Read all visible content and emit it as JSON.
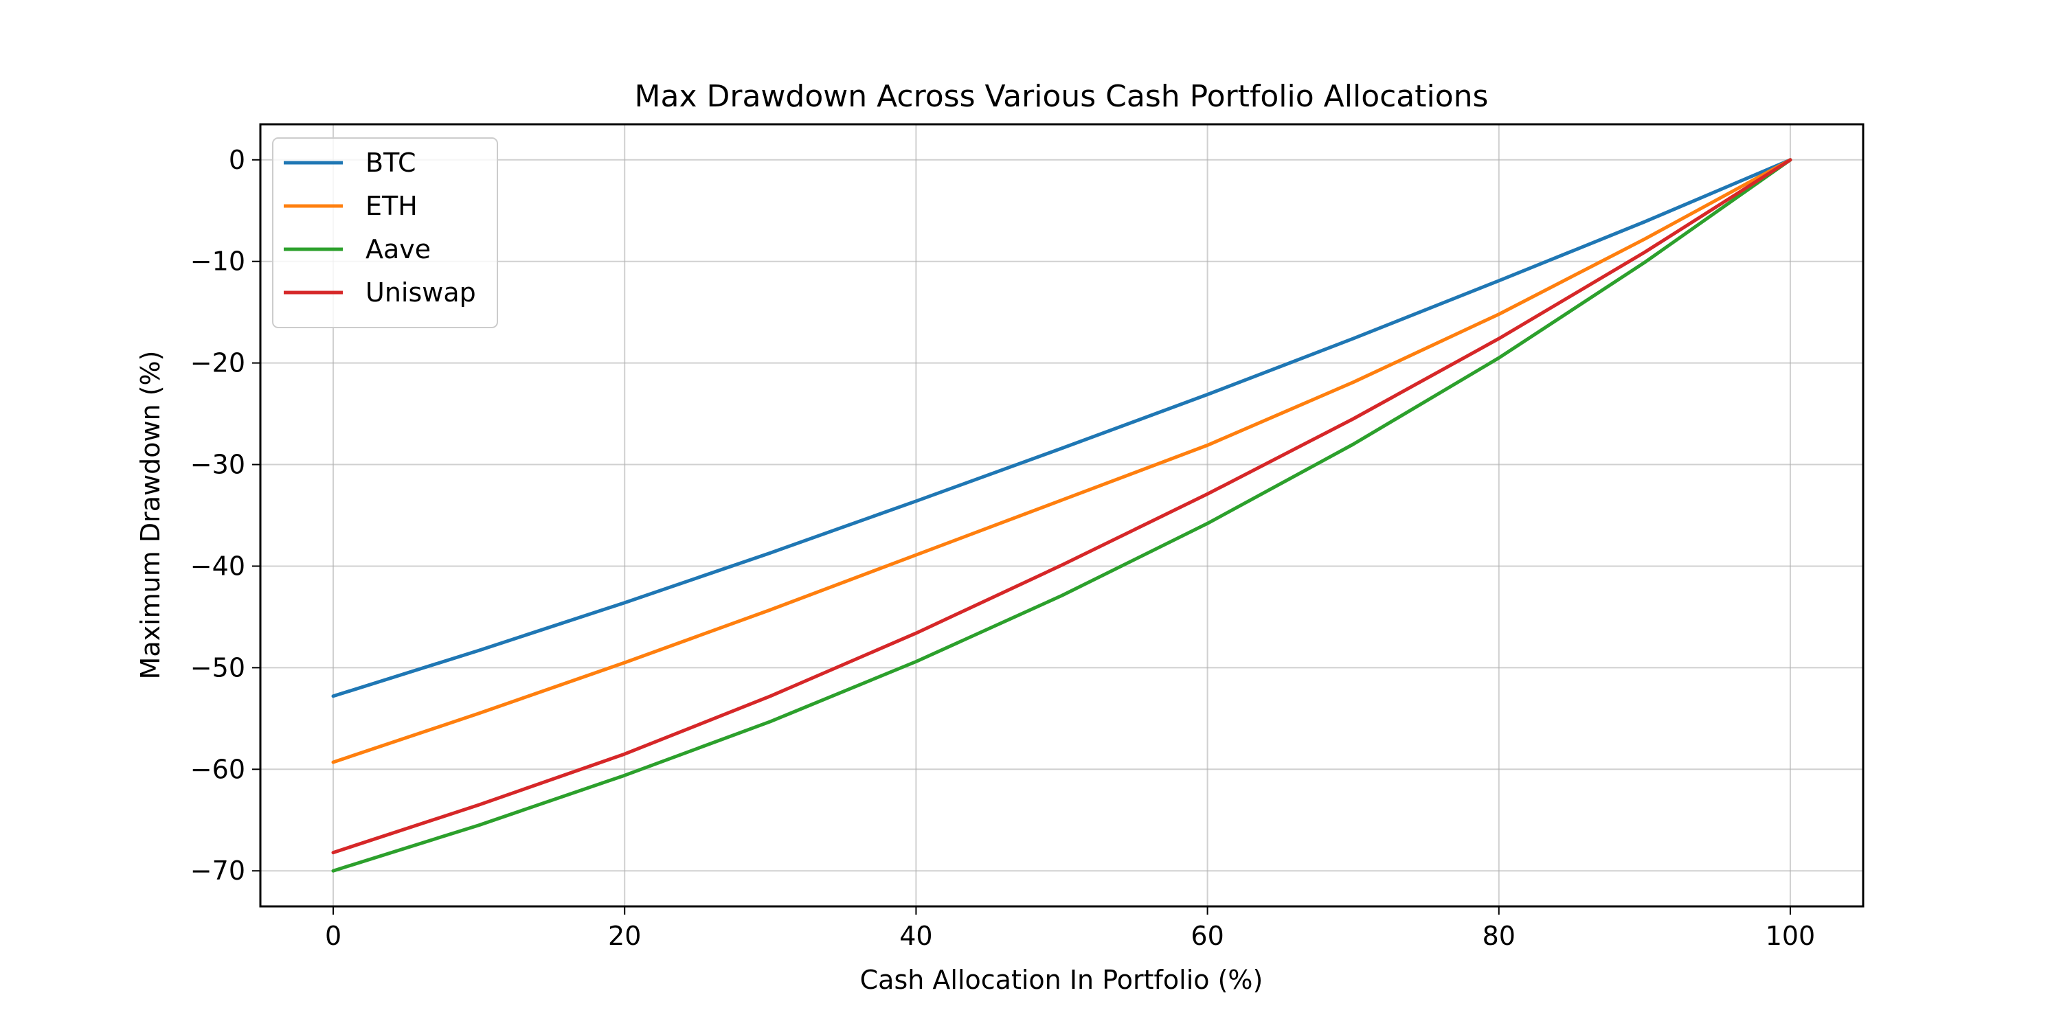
{
  "chart_data": {
    "type": "line",
    "title": "Max Drawdown Across Various Cash Portfolio Allocations",
    "xlabel": "Cash Allocation In Portfolio (%)",
    "ylabel": "Maximum Drawdown (%)",
    "xlim": [
      -5,
      105
    ],
    "ylim": [
      -73.5,
      3.5
    ],
    "xticks": [
      0,
      20,
      40,
      60,
      80,
      100
    ],
    "yticks": [
      0,
      -10,
      -20,
      -30,
      -40,
      -50,
      -60,
      -70
    ],
    "xtick_labels": [
      "0",
      "20",
      "40",
      "60",
      "80",
      "100"
    ],
    "ytick_labels": [
      "0",
      "−10",
      "−20",
      "−30",
      "−40",
      "−50",
      "−60",
      "−70"
    ],
    "grid": true,
    "legend_position": "upper-left",
    "x": [
      0,
      10,
      20,
      30,
      40,
      50,
      60,
      70,
      80,
      90,
      100
    ],
    "series": [
      {
        "name": "BTC",
        "color": "#1f77b4",
        "values": [
          -52.8,
          -48.3,
          -43.6,
          -38.7,
          -33.6,
          -28.4,
          -23.1,
          -17.6,
          -11.9,
          -6.1,
          0
        ]
      },
      {
        "name": "ETH",
        "color": "#ff7f0e",
        "values": [
          -59.3,
          -54.5,
          -49.5,
          -44.3,
          -38.9,
          -33.5,
          -28.1,
          -21.9,
          -15.2,
          -7.8,
          0
        ]
      },
      {
        "name": "Aave",
        "color": "#2ca02c",
        "values": [
          -70.0,
          -65.5,
          -60.6,
          -55.3,
          -49.4,
          -42.9,
          -35.8,
          -28.0,
          -19.5,
          -10.1,
          0
        ]
      },
      {
        "name": "Uniswap",
        "color": "#d62728",
        "values": [
          -68.2,
          -63.5,
          -58.5,
          -52.8,
          -46.6,
          -39.9,
          -32.9,
          -25.5,
          -17.6,
          -9.1,
          0
        ]
      }
    ]
  }
}
